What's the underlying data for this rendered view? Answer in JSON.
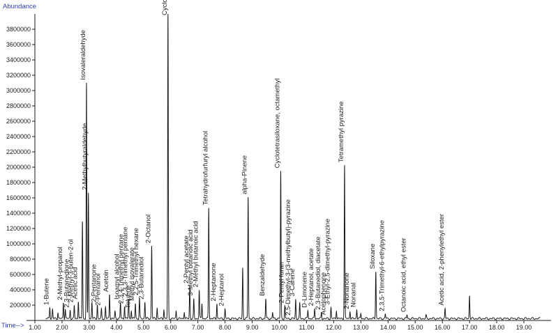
{
  "chart_data": {
    "type": "line",
    "ylabel": "Abundance",
    "xlabel": "Time-->",
    "xlim": [
      1.0,
      20.0
    ],
    "ylim": [
      0,
      4000000
    ],
    "x_ticks": [
      "1.00",
      "2.00",
      "3.00",
      "4.00",
      "5.00",
      "6.00",
      "7.00",
      "8.00",
      "9.00",
      "10.00",
      "11.00",
      "12.00",
      "13.00",
      "14.00",
      "15.00",
      "16.00",
      "17.00",
      "18.00",
      "19.00"
    ],
    "x_tick_values": [
      1,
      2,
      3,
      4,
      5,
      6,
      7,
      8,
      9,
      10,
      11,
      12,
      13,
      14,
      15,
      16,
      17,
      18,
      19
    ],
    "y_ticks": [
      "200000",
      "400000",
      "600000",
      "800000",
      "1000000",
      "1200000",
      "1400000",
      "1600000",
      "1800000",
      "2000000",
      "2200000",
      "2400000",
      "2600000",
      "2800000",
      "3000000",
      "3200000",
      "3400000",
      "3600000",
      "3800000"
    ],
    "y_tick_values": [
      200000,
      400000,
      600000,
      800000,
      1000000,
      1200000,
      1400000,
      1600000,
      1800000,
      2000000,
      2200000,
      2400000,
      2600000,
      2800000,
      3000000,
      3200000,
      3400000,
      3600000,
      3800000
    ],
    "series": [
      {
        "color": "#1a1a1a",
        "peaks": [
          {
            "x": 1.55,
            "y": 150000
          },
          {
            "x": 1.65,
            "y": 120000
          },
          {
            "x": 1.85,
            "y": 80000
          },
          {
            "x": 2.05,
            "y": 210000
          },
          {
            "x": 2.12,
            "y": 120000
          },
          {
            "x": 2.3,
            "y": 110000
          },
          {
            "x": 2.45,
            "y": 170000
          },
          {
            "x": 2.6,
            "y": 230000
          },
          {
            "x": 2.75,
            "y": 1270000
          },
          {
            "x": 2.9,
            "y": 3070000
          },
          {
            "x": 2.97,
            "y": 1640000
          },
          {
            "x": 3.1,
            "y": 220000
          },
          {
            "x": 3.3,
            "y": 180000
          },
          {
            "x": 3.45,
            "y": 120000
          },
          {
            "x": 3.6,
            "y": 150000
          },
          {
            "x": 3.75,
            "y": 320000
          },
          {
            "x": 3.95,
            "y": 90000
          },
          {
            "x": 4.15,
            "y": 210000
          },
          {
            "x": 4.3,
            "y": 170000
          },
          {
            "x": 4.45,
            "y": 250000
          },
          {
            "x": 4.55,
            "y": 110000
          },
          {
            "x": 4.7,
            "y": 200000
          },
          {
            "x": 4.85,
            "y": 260000
          },
          {
            "x": 5.05,
            "y": 220000
          },
          {
            "x": 5.3,
            "y": 950000
          },
          {
            "x": 5.5,
            "y": 140000
          },
          {
            "x": 5.75,
            "y": 120000
          },
          {
            "x": 5.9,
            "y": 4000000
          },
          {
            "x": 6.2,
            "y": 100000
          },
          {
            "x": 6.5,
            "y": 90000
          },
          {
            "x": 6.7,
            "y": 420000
          },
          {
            "x": 6.85,
            "y": 250000
          },
          {
            "x": 7.05,
            "y": 370000
          },
          {
            "x": 7.15,
            "y": 200000
          },
          {
            "x": 7.4,
            "y": 1450000
          },
          {
            "x": 7.7,
            "y": 200000
          },
          {
            "x": 8.0,
            "y": 120000
          },
          {
            "x": 8.65,
            "y": 660000
          },
          {
            "x": 8.85,
            "y": 1590000
          },
          {
            "x": 9.5,
            "y": 260000
          },
          {
            "x": 9.75,
            "y": 80000
          },
          {
            "x": 10.05,
            "y": 1920000
          },
          {
            "x": 10.2,
            "y": 160000
          },
          {
            "x": 10.6,
            "y": 250000
          },
          {
            "x": 10.75,
            "y": 200000
          },
          {
            "x": 11.05,
            "y": 110000
          },
          {
            "x": 11.3,
            "y": 130000
          },
          {
            "x": 11.55,
            "y": 80000
          },
          {
            "x": 11.9,
            "y": 140000
          },
          {
            "x": 12.1,
            "y": 110000
          },
          {
            "x": 12.4,
            "y": 2000000
          },
          {
            "x": 12.6,
            "y": 100000
          },
          {
            "x": 12.85,
            "y": 120000
          },
          {
            "x": 13.0,
            "y": 70000
          },
          {
            "x": 13.55,
            "y": 620000
          },
          {
            "x": 13.9,
            "y": 60000
          },
          {
            "x": 14.7,
            "y": 50000
          },
          {
            "x": 15.4,
            "y": 40000
          },
          {
            "x": 16.1,
            "y": 130000
          },
          {
            "x": 17.0,
            "y": 300000
          }
        ]
      }
    ],
    "annotations": [
      {
        "text": "1-Butene",
        "x": 1.55
      },
      {
        "text": "2-Methyl-propanol",
        "x": 2.05
      },
      {
        "text": "2,3-Butanedione",
        "x": 2.3
      },
      {
        "text": "2-Methyl-3-buten-2-ol",
        "x": 2.45
      },
      {
        "text": "Acetic acid",
        "x": 2.6
      },
      {
        "text": "Isovaleraldehyde",
        "x": 2.9
      },
      {
        "text": "2-Methylbutyraldehyde",
        "x": 2.97
      },
      {
        "text": "2-Pentanone",
        "x": 3.3
      },
      {
        "text": "2-Pentanol",
        "x": 3.45
      },
      {
        "text": "Acetoin",
        "x": 3.75
      },
      {
        "text": "Isoamyl alcohol",
        "x": 4.15
      },
      {
        "text": "2,3,4-Trimethyl pentane",
        "x": 4.3
      },
      {
        "text": "2,3,3-Trimethyl pentane",
        "x": 4.45
      },
      {
        "text": "Toluene",
        "x": 4.55
      },
      {
        "text": "Methyl isovalerate",
        "x": 4.7
      },
      {
        "text": "2,2,5-Trimethyl hexane",
        "x": 4.85
      },
      {
        "text": "2,3-Butanediol",
        "x": 5.05
      },
      {
        "text": "2-Octanol",
        "x": 5.3
      },
      {
        "text": "Cyclotrisiloxane, hexamethyl-",
        "x": 5.9
      },
      {
        "text": "2-Pentyl acetate",
        "x": 6.7
      },
      {
        "text": "3-Methyl butanoic acid",
        "x": 6.85
      },
      {
        "text": "2-Methyl butanoic acid",
        "x": 7.05
      },
      {
        "text": "Tetrahydrofurfuryl alcohol",
        "x": 7.4
      },
      {
        "text": "2-Heptanone",
        "x": 7.7
      },
      {
        "text": "2-Heptanol",
        "x": 8.0
      },
      {
        "text": "alpha-Pinene",
        "x": 8.85
      },
      {
        "text": "Benzaldehyde",
        "x": 9.5
      },
      {
        "text": "Cyclotetrasiloxane, octamethyl",
        "x": 10.05
      },
      {
        "text": "2-Pentyl furan",
        "x": 10.2
      },
      {
        "text": "2,5-Dimethyl-3-(3-methylbutyl)-pyrazine",
        "x": 10.45
      },
      {
        "text": "3-Carene",
        "x": 10.6
      },
      {
        "text": "D-Limonene",
        "x": 11.05
      },
      {
        "text": "2-Heptanol, acetate",
        "x": 11.3
      },
      {
        "text": "2,3-Butanediol, diacetate",
        "x": 11.55
      },
      {
        "text": "Acetophenone",
        "x": 11.75
      },
      {
        "text": "3-Ethyl-2,5-dimethyl-pyrazine",
        "x": 11.9
      },
      {
        "text": "Tetramethyl pyrazine",
        "x": 12.4
      },
      {
        "text": "2-Nonanone",
        "x": 12.6
      },
      {
        "text": "Nonanal",
        "x": 12.85
      },
      {
        "text": "Siloxane",
        "x": 13.55
      },
      {
        "text": "2,3,5-Trimethyl-6-ethylpyrazine",
        "x": 13.9
      },
      {
        "text": "Octanoic acid, ethyl ester",
        "x": 14.7
      },
      {
        "text": "Acetic acid, 2-phenylethyl ester",
        "x": 16.1
      }
    ]
  }
}
